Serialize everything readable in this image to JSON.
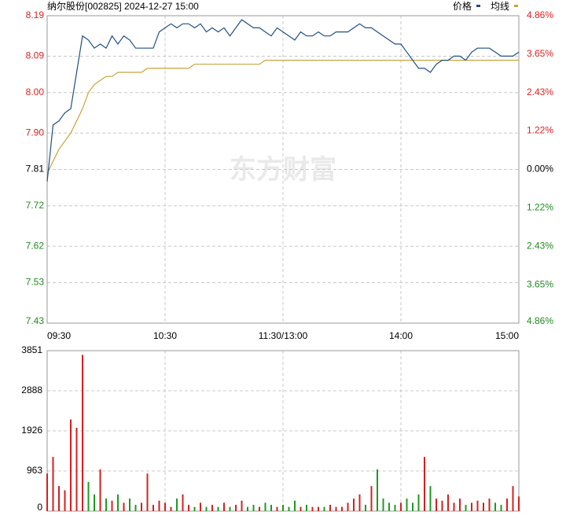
{
  "chart_data": [
    {
      "type": "line",
      "title": "纳尔股份[002825] 2024-12-27 15:00",
      "watermark": "东方财富",
      "legend": "top-right",
      "grid": true,
      "xlim": [
        0,
        240
      ],
      "xticks": [
        {
          "value": 0,
          "label": "09:30"
        },
        {
          "value": 60,
          "label": "10:30"
        },
        {
          "value": 120,
          "label": "11:30/13:00"
        },
        {
          "value": 180,
          "label": "14:00"
        },
        {
          "value": 240,
          "label": "15:00"
        }
      ],
      "ylim": [
        7.43,
        8.19
      ],
      "yticks": [
        8.19,
        8.09,
        {
          "value": 8,
          "label": "8.00"
        },
        {
          "value": 7.9,
          "label": "7.90"
        },
        7.81,
        7.72,
        7.62,
        7.53,
        7.43
      ],
      "y2lim": [
        -4.86,
        4.86
      ],
      "y2ticks": [
        {
          "value": 4.86,
          "label": "4.86%"
        },
        {
          "value": 3.65,
          "label": "3.65%"
        },
        {
          "value": 2.43,
          "label": "2.43%"
        },
        {
          "value": 1.22,
          "label": "1.22%"
        },
        {
          "value": 0,
          "label": "0.00%"
        },
        {
          "value": -1.22,
          "label": "1.22%"
        },
        {
          "value": -2.43,
          "label": "2.43%"
        },
        {
          "value": -3.65,
          "label": "3.65%"
        },
        {
          "value": -4.86,
          "label": "4.86%"
        }
      ],
      "x": [
        0,
        3,
        6,
        9,
        12,
        15,
        18,
        21,
        24,
        27,
        30,
        33,
        36,
        39,
        42,
        45,
        48,
        51,
        54,
        57,
        60,
        63,
        66,
        69,
        72,
        75,
        78,
        81,
        84,
        87,
        90,
        93,
        96,
        99,
        102,
        105,
        108,
        111,
        114,
        117,
        120,
        123,
        126,
        129,
        132,
        135,
        138,
        141,
        144,
        147,
        150,
        153,
        156,
        159,
        162,
        165,
        168,
        171,
        174,
        177,
        180,
        183,
        186,
        189,
        192,
        195,
        198,
        201,
        204,
        207,
        210,
        213,
        216,
        219,
        222,
        225,
        228,
        231,
        234,
        237,
        240
      ],
      "series": [
        {
          "name": "价格",
          "color": "#1f4e85",
          "values": [
            7.78,
            7.92,
            7.93,
            7.95,
            7.96,
            8.05,
            8.14,
            8.13,
            8.11,
            8.12,
            8.11,
            8.14,
            8.12,
            8.14,
            8.13,
            8.11,
            8.11,
            8.11,
            8.11,
            8.15,
            8.16,
            8.17,
            8.16,
            8.17,
            8.17,
            8.16,
            8.17,
            8.15,
            8.16,
            8.15,
            8.16,
            8.14,
            8.16,
            8.18,
            8.17,
            8.16,
            8.16,
            8.15,
            8.14,
            8.16,
            8.15,
            8.14,
            8.13,
            8.15,
            8.14,
            8.14,
            8.15,
            8.14,
            8.14,
            8.15,
            8.15,
            8.15,
            8.16,
            8.17,
            8.16,
            8.16,
            8.15,
            8.14,
            8.13,
            8.12,
            8.12,
            8.1,
            8.08,
            8.06,
            8.06,
            8.05,
            8.07,
            8.08,
            8.08,
            8.09,
            8.09,
            8.08,
            8.1,
            8.11,
            8.11,
            8.11,
            8.1,
            8.09,
            8.09,
            8.09,
            8.1
          ]
        },
        {
          "name": "均线",
          "color": "#c9a33a",
          "values": [
            7.8,
            7.83,
            7.86,
            7.88,
            7.9,
            7.93,
            7.96,
            8.0,
            8.02,
            8.03,
            8.04,
            8.04,
            8.05,
            8.05,
            8.05,
            8.05,
            8.05,
            8.06,
            8.06,
            8.06,
            8.06,
            8.06,
            8.06,
            8.06,
            8.06,
            8.07,
            8.07,
            8.07,
            8.07,
            8.07,
            8.07,
            8.07,
            8.07,
            8.07,
            8.07,
            8.07,
            8.07,
            8.08,
            8.08,
            8.08,
            8.08,
            8.08,
            8.08,
            8.08,
            8.08,
            8.08,
            8.08,
            8.08,
            8.08,
            8.08,
            8.08,
            8.08,
            8.08,
            8.08,
            8.08,
            8.08,
            8.08,
            8.08,
            8.08,
            8.08,
            8.08,
            8.08,
            8.08,
            8.08,
            8.08,
            8.08,
            8.08,
            8.08,
            8.08,
            8.08,
            8.08,
            8.08,
            8.08,
            8.08,
            8.08,
            8.08,
            8.08,
            8.08,
            8.08,
            8.08,
            8.08
          ]
        }
      ]
    },
    {
      "type": "bar",
      "grid": true,
      "up_color": "#d42020",
      "down_color": "#1f9a1f",
      "xlim": [
        0,
        240
      ],
      "x": [
        0,
        3,
        6,
        9,
        12,
        15,
        18,
        21,
        24,
        27,
        30,
        33,
        36,
        39,
        42,
        45,
        48,
        51,
        54,
        57,
        60,
        63,
        66,
        69,
        72,
        75,
        78,
        81,
        84,
        87,
        90,
        93,
        96,
        99,
        102,
        105,
        108,
        111,
        114,
        117,
        120,
        123,
        126,
        129,
        132,
        135,
        138,
        141,
        144,
        147,
        150,
        153,
        156,
        159,
        162,
        165,
        168,
        171,
        174,
        177,
        180,
        183,
        186,
        189,
        192,
        195,
        198,
        201,
        204,
        207,
        210,
        213,
        216,
        219,
        222,
        225,
        228,
        231,
        234,
        237,
        240
      ],
      "ylim": [
        0,
        3851
      ],
      "yticks": [
        3851,
        2888,
        1926,
        963,
        0
      ],
      "values": [
        900,
        1300,
        600,
        500,
        2200,
        2000,
        3750,
        700,
        400,
        1000,
        300,
        250,
        400,
        200,
        300,
        150,
        200,
        900,
        150,
        250,
        200,
        100,
        300,
        400,
        150,
        100,
        200,
        100,
        150,
        100,
        200,
        100,
        150,
        250,
        100,
        150,
        100,
        200,
        150,
        100,
        150,
        100,
        250,
        100,
        150,
        100,
        100,
        100,
        150,
        100,
        100,
        200,
        300,
        400,
        150,
        600,
        1000,
        300,
        200,
        150,
        200,
        300,
        200,
        400,
        1300,
        600,
        300,
        250,
        400,
        200,
        300,
        150,
        200,
        250,
        200,
        300,
        200,
        150,
        300,
        600,
        350
      ]
    }
  ]
}
